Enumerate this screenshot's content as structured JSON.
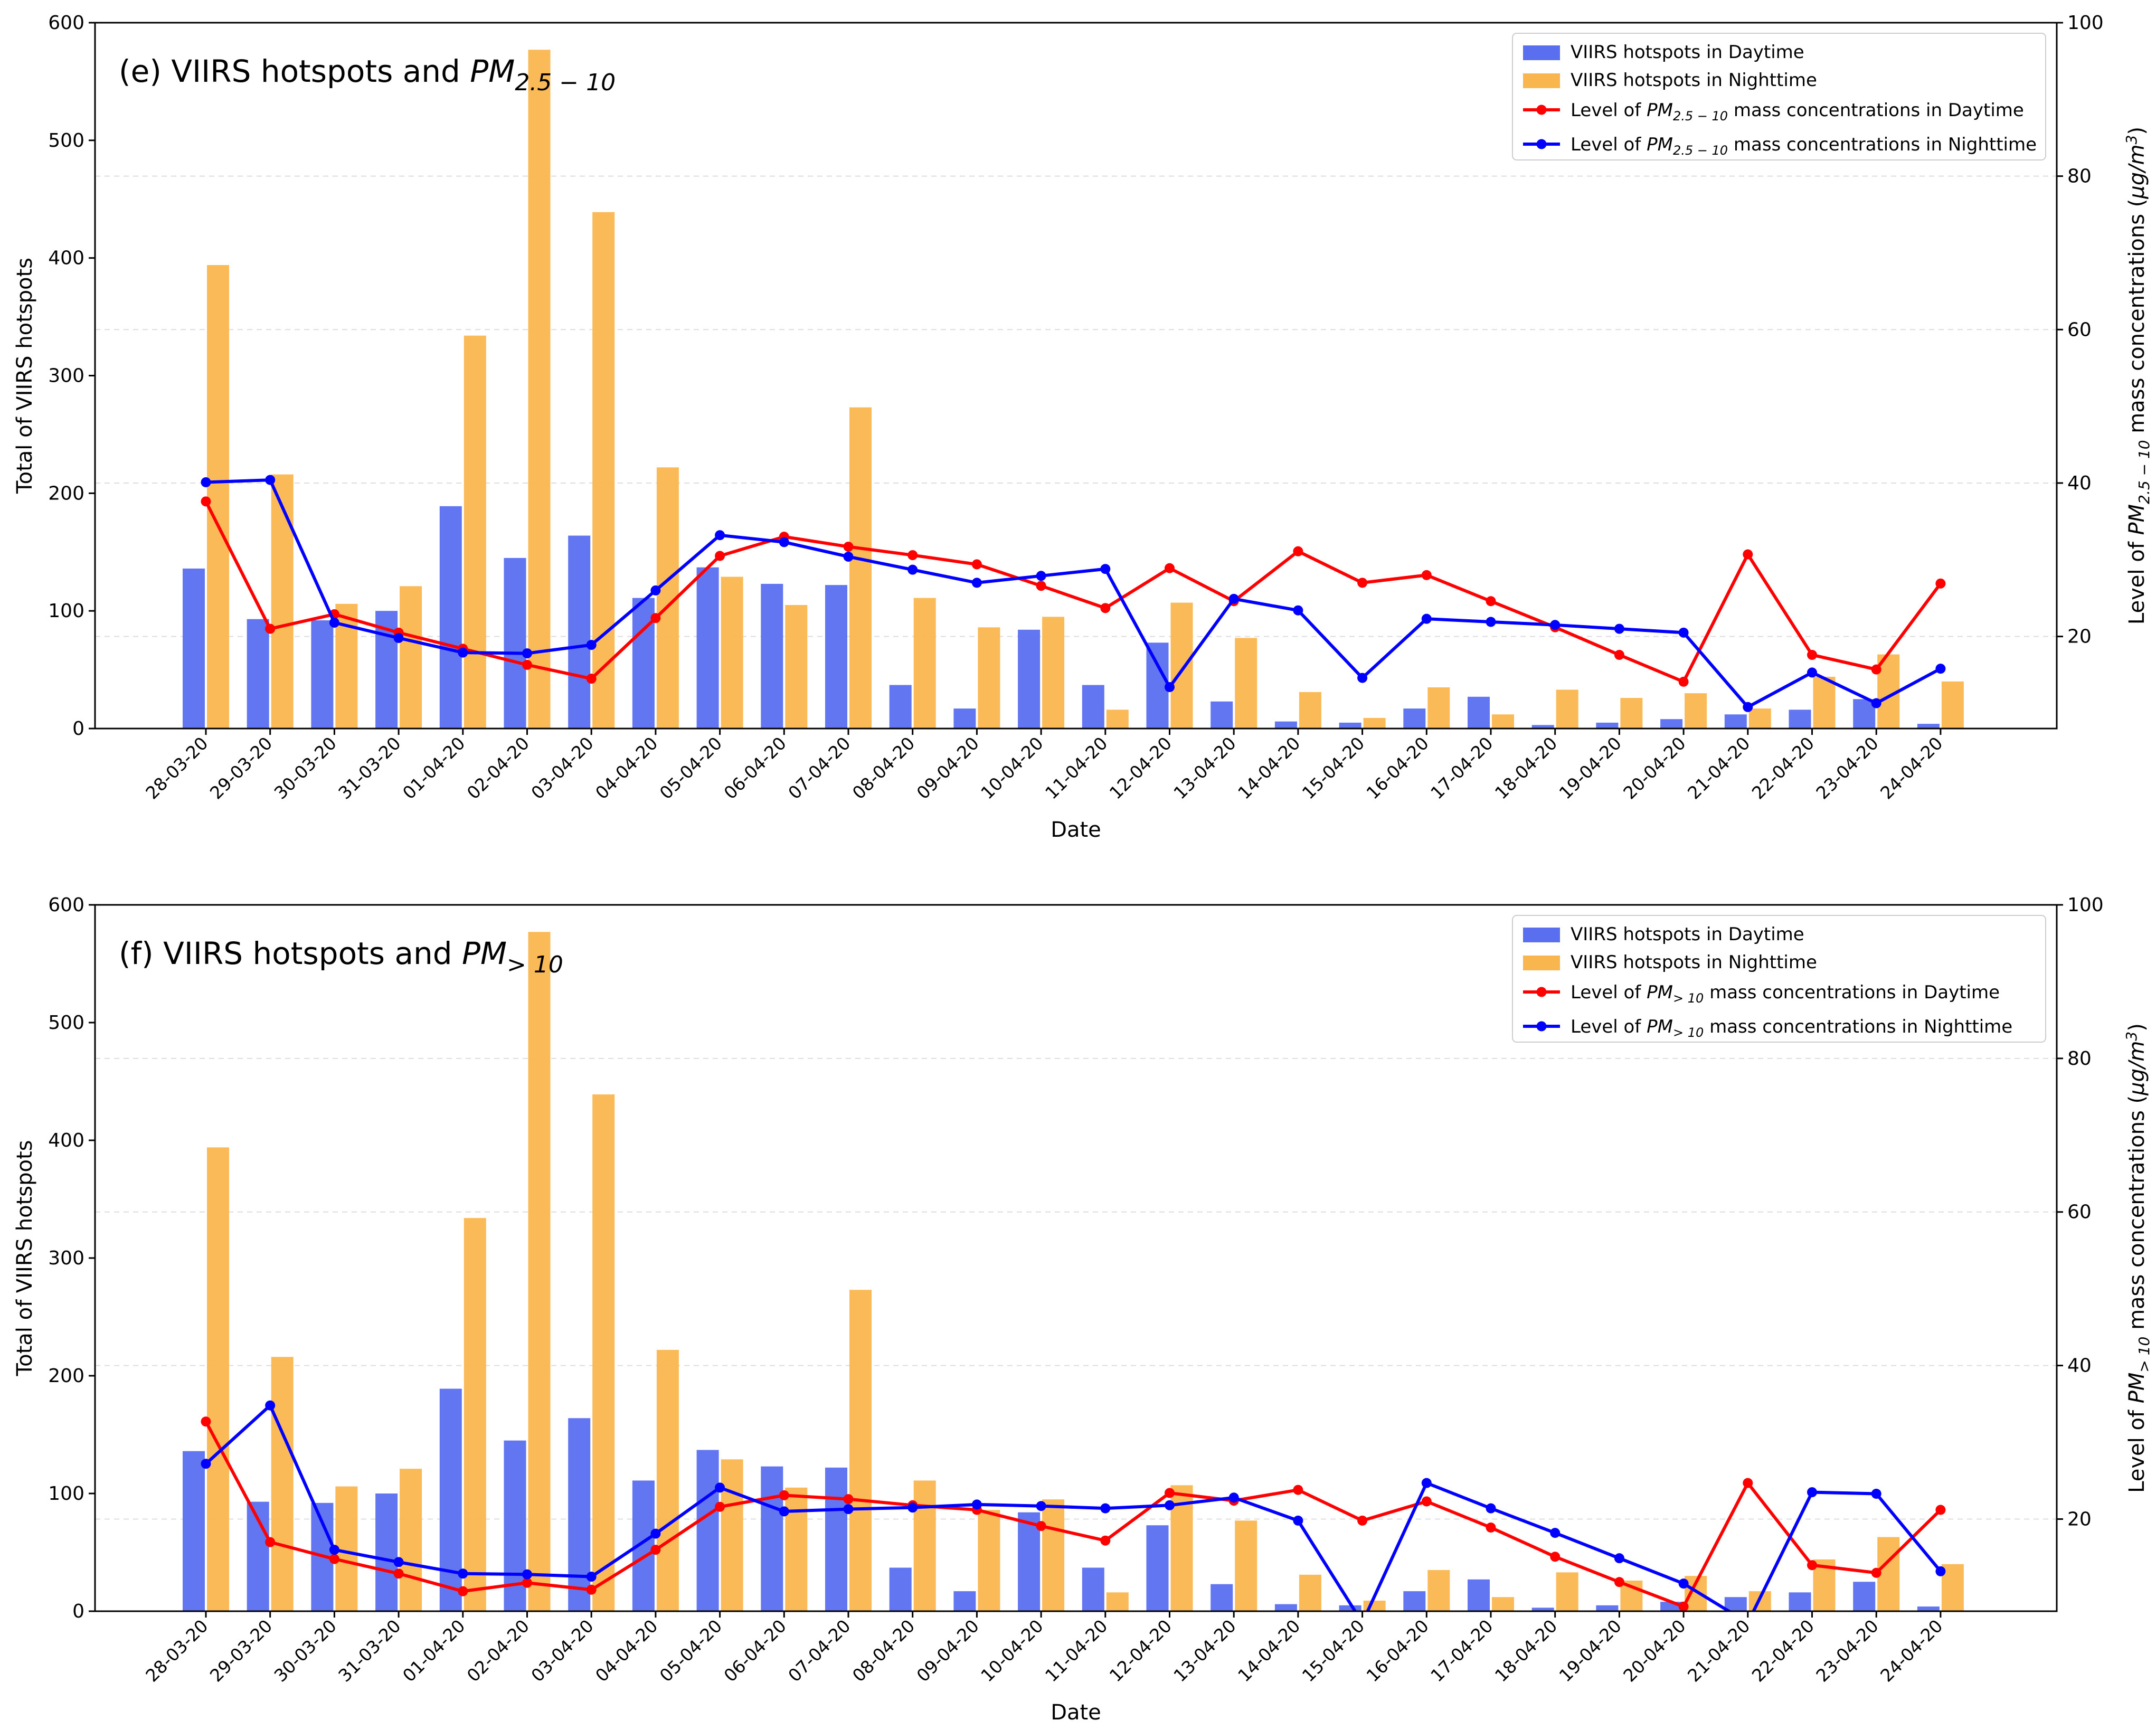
{
  "chart_data": [
    {
      "type": "bar+line",
      "title": "(e) VIIRS hotspots and ",
      "title_pm": "PM",
      "title_sub": "2.5 − 10",
      "xlabel": "Date",
      "ylabel_left": "Total of VIIRS hotspots",
      "ylabel_right_prefix": "Level of ",
      "ylabel_right_pm": "PM",
      "ylabel_right_sub": "2.5 − 10",
      "ylabel_right_suffix": " mass concentrations (",
      "ylabel_right_unit": "μg/m",
      "ylabel_right_unit_exp": "3",
      "ylabel_right_close": ")",
      "ylim_left": [
        0,
        600
      ],
      "ylim_right": [
        8,
        100
      ],
      "yticks_left": [
        "0",
        "100",
        "200",
        "300",
        "400",
        "500",
        "600"
      ],
      "yticks_right": [
        "20",
        "40",
        "60",
        "80",
        "100"
      ],
      "categories": [
        "28-03-20",
        "29-03-20",
        "30-03-20",
        "31-03-20",
        "01-04-20",
        "02-04-20",
        "03-04-20",
        "04-04-20",
        "05-04-20",
        "06-04-20",
        "07-04-20",
        "08-04-20",
        "09-04-20",
        "10-04-20",
        "11-04-20",
        "12-04-20",
        "13-04-20",
        "14-04-20",
        "15-04-20",
        "16-04-20",
        "17-04-20",
        "18-04-20",
        "19-04-20",
        "20-04-20",
        "21-04-20",
        "22-04-20",
        "23-04-20",
        "24-04-20"
      ],
      "bars_day": [
        136,
        93,
        92,
        100,
        189,
        145,
        164,
        111,
        137,
        123,
        122,
        37,
        17,
        84,
        37,
        73,
        23,
        6,
        5,
        17,
        27,
        3,
        5,
        8,
        12,
        16,
        25,
        4
      ],
      "bars_night": [
        394,
        216,
        106,
        121,
        334,
        577,
        439,
        222,
        129,
        105,
        273,
        111,
        86,
        95,
        16,
        107,
        77,
        31,
        9,
        35,
        12,
        33,
        26,
        30,
        17,
        44,
        63,
        40
      ],
      "line_day": [
        37.6,
        21.0,
        22.9,
        20.5,
        18.4,
        16.3,
        14.5,
        22.4,
        30.5,
        33.0,
        31.7,
        30.6,
        29.4,
        26.6,
        23.7,
        28.9,
        24.6,
        31.1,
        27.0,
        28.0,
        24.6,
        21.2,
        17.6,
        14.1,
        30.7,
        17.6,
        15.7,
        26.9
      ],
      "line_night": [
        40.1,
        40.4,
        21.8,
        19.8,
        17.9,
        17.8,
        18.9,
        26.0,
        33.2,
        32.3,
        30.4,
        28.7,
        27.0,
        27.9,
        28.8,
        13.4,
        24.9,
        23.4,
        14.6,
        22.3,
        21.9,
        21.5,
        21.0,
        20.5,
        10.8,
        15.3,
        11.3,
        15.8
      ],
      "legend": {
        "bar_day": "VIIRS hotspots in Daytime",
        "bar_night": "VIIRS hotspots in Nighttime",
        "line_day_prefix": "Level of ",
        "line_day_pm": "PM",
        "line_day_sub": "2.5 − 10",
        "line_day_suffix": " mass concentrations in Daytime",
        "line_night_prefix": "Level of ",
        "line_night_pm": "PM",
        "line_night_sub": "2.5 − 10",
        "line_night_suffix": " mass concentrations in Nighttime",
        "placement": "top-right"
      },
      "colors": {
        "bar_day": "#5a6ff0",
        "bar_night": "#f9b64e",
        "line_day": "#ff0000",
        "line_night": "#0000ff"
      },
      "grid": "horizontal dashed (right axis)"
    },
    {
      "type": "bar+line",
      "title": "(f) VIIRS hotspots and ",
      "title_pm": "PM",
      "title_sub": "> 10",
      "xlabel": "Date",
      "ylabel_left": "Total of VIIRS hotspots",
      "ylabel_right_prefix": "Level of ",
      "ylabel_right_pm": "PM",
      "ylabel_right_sub": "> 10",
      "ylabel_right_suffix": " mass concentrations (",
      "ylabel_right_unit": "μg/m",
      "ylabel_right_unit_exp": "3",
      "ylabel_right_close": ")",
      "ylim_left": [
        0,
        600
      ],
      "ylim_right": [
        8,
        100
      ],
      "yticks_left": [
        "0",
        "100",
        "200",
        "300",
        "400",
        "500",
        "600"
      ],
      "yticks_right": [
        "20",
        "40",
        "60",
        "80",
        "100"
      ],
      "categories": [
        "28-03-20",
        "29-03-20",
        "30-03-20",
        "31-03-20",
        "01-04-20",
        "02-04-20",
        "03-04-20",
        "04-04-20",
        "05-04-20",
        "06-04-20",
        "07-04-20",
        "08-04-20",
        "09-04-20",
        "10-04-20",
        "11-04-20",
        "12-04-20",
        "13-04-20",
        "14-04-20",
        "15-04-20",
        "16-04-20",
        "17-04-20",
        "18-04-20",
        "19-04-20",
        "20-04-20",
        "21-04-20",
        "22-04-20",
        "23-04-20",
        "24-04-20"
      ],
      "bars_day": [
        136,
        93,
        92,
        100,
        189,
        145,
        164,
        111,
        137,
        123,
        122,
        37,
        17,
        84,
        37,
        73,
        23,
        6,
        5,
        17,
        27,
        3,
        5,
        8,
        12,
        16,
        25,
        4
      ],
      "bars_night": [
        394,
        216,
        106,
        121,
        334,
        577,
        439,
        222,
        129,
        105,
        273,
        111,
        86,
        95,
        16,
        107,
        77,
        31,
        9,
        35,
        12,
        33,
        26,
        30,
        17,
        44,
        63,
        40
      ],
      "line_day": [
        32.7,
        17.0,
        14.8,
        12.9,
        10.6,
        11.7,
        10.8,
        16.0,
        21.6,
        23.1,
        22.6,
        21.8,
        21.2,
        19.1,
        17.2,
        23.4,
        22.4,
        23.8,
        19.8,
        22.3,
        18.9,
        15.1,
        11.8,
        8.6,
        24.7,
        14.0,
        13.0,
        21.2
      ],
      "line_night": [
        27.2,
        34.8,
        16.0,
        14.4,
        12.9,
        12.8,
        12.5,
        18.1,
        24.1,
        21.0,
        21.3,
        21.5,
        21.9,
        21.7,
        21.4,
        21.8,
        22.8,
        19.8,
        6.5,
        24.7,
        21.4,
        18.2,
        14.9,
        11.6,
        6.5,
        23.5,
        23.3,
        13.2
      ],
      "legend": {
        "bar_day": "VIIRS hotspots in Daytime",
        "bar_night": "VIIRS hotspots in Nighttime",
        "line_day_prefix": "Level of ",
        "line_day_pm": "PM",
        "line_day_sub": "> 10",
        "line_day_suffix": " mass concentrations in Daytime",
        "line_night_prefix": "Level of ",
        "line_night_pm": "PM",
        "line_night_sub": "> 10",
        "line_night_suffix": " mass concentrations in Nighttime",
        "placement": "top-right"
      },
      "colors": {
        "bar_day": "#5a6ff0",
        "bar_night": "#f9b64e",
        "line_day": "#ff0000",
        "line_night": "#0000ff"
      },
      "grid": "horizontal dashed (right axis)"
    }
  ]
}
